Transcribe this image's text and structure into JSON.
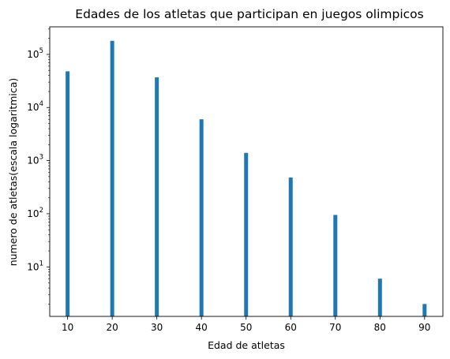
{
  "chart_data": {
    "type": "bar",
    "title": "Edades de los atletas que participan en juegos olimpicos",
    "xlabel": "Edad de atletas",
    "ylabel": "numero de atletas(escala logaritmica)",
    "yscale": "log",
    "x": [
      10,
      20,
      30,
      40,
      50,
      60,
      70,
      80,
      90
    ],
    "values": [
      48000,
      180000,
      37000,
      6000,
      1400,
      480,
      95,
      6,
      2
    ],
    "x_ticks": [
      "10",
      "20",
      "30",
      "40",
      "50",
      "60",
      "70",
      "80",
      "90"
    ],
    "y_ticks": [
      {
        "base": "10",
        "exp": "1",
        "value": 10
      },
      {
        "base": "10",
        "exp": "2",
        "value": 100
      },
      {
        "base": "10",
        "exp": "3",
        "value": 1000
      },
      {
        "base": "10",
        "exp": "4",
        "value": 10000
      },
      {
        "base": "10",
        "exp": "5",
        "value": 100000
      }
    ],
    "xlim": [
      6.0,
      94.1
    ],
    "ylim": [
      1.17,
      330000
    ],
    "grid": false,
    "bar_color": "#1f77b4"
  }
}
